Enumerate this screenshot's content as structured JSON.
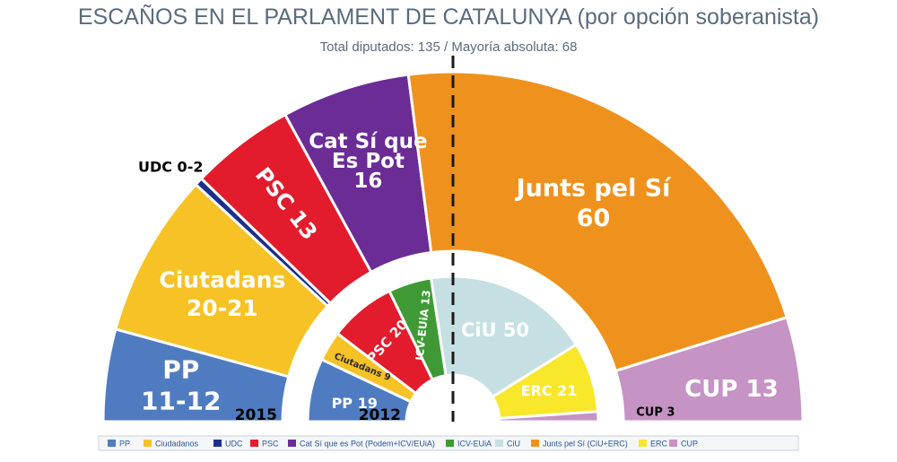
{
  "chart_data": {
    "type": "pie",
    "subtype": "parliament-semicircle",
    "title": "ESCAÑOS EN EL PARLAMENT DE CATALUNYA",
    "title_suffix": "(por opción soberanista)",
    "subtitle": "Total diputados: 135 / Mayoría absoluta: 68",
    "total_seats": 135,
    "majority": 68,
    "rings": [
      {
        "year": "2015",
        "segments": [
          {
            "party": "PP",
            "label": "PP\n11-12",
            "seats": 11.5,
            "color": "#4f7cc0"
          },
          {
            "party": "Ciudadanos",
            "label": "Ciutadans\n20-21",
            "seats": 20.5,
            "color": "#f6c225"
          },
          {
            "party": "UDC",
            "label": "UDC 0-2",
            "seats": 1,
            "color": "#1b2f8c"
          },
          {
            "party": "PSC",
            "label": "PSC 13",
            "seats": 13,
            "color": "#e21c2c"
          },
          {
            "party": "Cat Sí que Es Pot",
            "label": "Cat Sí que\nEs Pot\n16",
            "seats": 16,
            "color": "#6b2c96"
          },
          {
            "party": "Junts pel Sí",
            "label": "Junts pel Sí\n60",
            "seats": 60,
            "color": "#ef921d"
          },
          {
            "party": "CUP",
            "label": "CUP 13",
            "seats": 13,
            "color": "#c593c4"
          }
        ]
      },
      {
        "year": "2012",
        "segments": [
          {
            "party": "PP",
            "label": "PP 19",
            "seats": 19,
            "color": "#4f7cc0"
          },
          {
            "party": "Ciudadanos",
            "label": "Ciutadans 9",
            "seats": 9,
            "color": "#f6c225"
          },
          {
            "party": "PSC",
            "label": "PSC 20",
            "seats": 20,
            "color": "#e21c2c"
          },
          {
            "party": "ICV-EUiA",
            "label": "ICV-EUiA 13",
            "seats": 13,
            "color": "#3f9a35"
          },
          {
            "party": "CiU",
            "label": "CiU 50",
            "seats": 50,
            "color": "#c6dfe2"
          },
          {
            "party": "ERC",
            "label": "ERC 21",
            "seats": 21,
            "color": "#f8e72a"
          },
          {
            "party": "CUP",
            "label": "CUP 3",
            "seats": 3,
            "color": "#c593c4"
          }
        ]
      }
    ],
    "legend": [
      {
        "label": "PP",
        "color": "#4f7cc0"
      },
      {
        "label": "Ciudadanos",
        "color": "#f6c225"
      },
      {
        "label": "UDC",
        "color": "#1b2f8c"
      },
      {
        "label": "PSC",
        "color": "#e21c2c"
      },
      {
        "label": "Cat Sí que es Pot (Podem+ICV/EUiA)",
        "color": "#6b2c96"
      },
      {
        "label": "ICV-EUiA",
        "color": "#3f9a35"
      },
      {
        "label": "CiU",
        "color": "#c6dfe2"
      },
      {
        "label": "Junts pel Sí (CiU+ERC)",
        "color": "#ef921d"
      },
      {
        "label": "ERC",
        "color": "#f8e72a"
      },
      {
        "label": "CUP",
        "color": "#c593c4"
      }
    ],
    "legend_position": "bottom"
  }
}
